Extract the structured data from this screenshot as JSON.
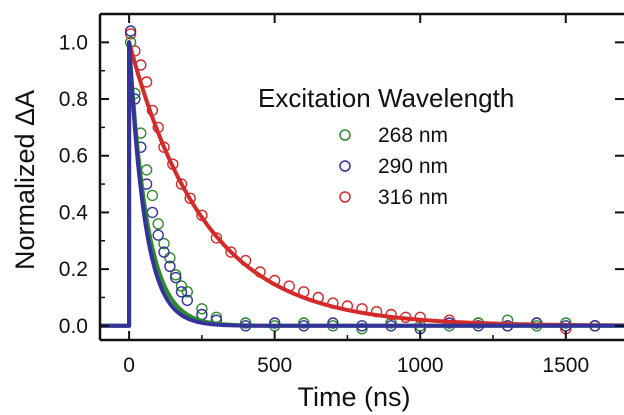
{
  "chart_data": {
    "type": "scatter",
    "xlabel": "Time (ns)",
    "ylabel": "Normalized ΔA",
    "xlim": [
      -100,
      1700
    ],
    "ylim": [
      -0.05,
      1.1
    ],
    "x_ticks": [
      "0",
      "500",
      "1000",
      "1500"
    ],
    "x_tick_values": [
      0,
      500,
      1000,
      1500
    ],
    "y_ticks": [
      "0.0",
      "0.2",
      "0.4",
      "0.6",
      "0.8",
      "1.0"
    ],
    "y_tick_values": [
      0,
      0.2,
      0.4,
      0.6,
      0.8,
      1.0
    ],
    "legend_title": "Excitation Wavelength",
    "legend_position": "top-right",
    "grid": false,
    "series": [
      {
        "name": "268 nm",
        "color": "#2f8a2f",
        "marker": "open-circle",
        "fit_tau_ns": 62,
        "points": [
          [
            5,
            1.0
          ],
          [
            20,
            0.82
          ],
          [
            40,
            0.68
          ],
          [
            60,
            0.55
          ],
          [
            80,
            0.46
          ],
          [
            100,
            0.36
          ],
          [
            120,
            0.29
          ],
          [
            140,
            0.24
          ],
          [
            160,
            0.18
          ],
          [
            180,
            0.14
          ],
          [
            200,
            0.12
          ],
          [
            250,
            0.06
          ],
          [
            300,
            0.03
          ],
          [
            400,
            0.01
          ],
          [
            500,
            0.0
          ],
          [
            600,
            0.01
          ],
          [
            700,
            0.0
          ],
          [
            800,
            -0.01
          ],
          [
            900,
            0.01
          ],
          [
            1000,
            0.0
          ],
          [
            1100,
            0.0
          ],
          [
            1200,
            0.01
          ],
          [
            1300,
            0.02
          ],
          [
            1400,
            0.0
          ],
          [
            1500,
            0.01
          ],
          [
            1600,
            0.0
          ]
        ]
      },
      {
        "name": "290 nm",
        "color": "#333399",
        "marker": "open-circle",
        "fit_tau_ns": 55,
        "points": [
          [
            5,
            1.04
          ],
          [
            20,
            0.8
          ],
          [
            40,
            0.63
          ],
          [
            60,
            0.5
          ],
          [
            80,
            0.4
          ],
          [
            100,
            0.32
          ],
          [
            120,
            0.26
          ],
          [
            140,
            0.21
          ],
          [
            160,
            0.17
          ],
          [
            180,
            0.12
          ],
          [
            200,
            0.09
          ],
          [
            250,
            0.04
          ],
          [
            300,
            0.02
          ],
          [
            400,
            0.0
          ],
          [
            500,
            0.01
          ],
          [
            600,
            0.0
          ],
          [
            700,
            0.01
          ],
          [
            800,
            0.0
          ],
          [
            900,
            0.0
          ],
          [
            1000,
            -0.01
          ],
          [
            1100,
            0.01
          ],
          [
            1200,
            0.0
          ],
          [
            1300,
            0.0
          ],
          [
            1400,
            0.01
          ],
          [
            1500,
            0.0
          ],
          [
            1600,
            0.0
          ]
        ]
      },
      {
        "name": "316 nm",
        "color": "#d42a2a",
        "marker": "open-circle",
        "fit_tau_ns": 260,
        "points": [
          [
            5,
            1.03
          ],
          [
            20,
            0.97
          ],
          [
            40,
            0.92
          ],
          [
            60,
            0.86
          ],
          [
            80,
            0.76
          ],
          [
            100,
            0.7
          ],
          [
            120,
            0.63
          ],
          [
            150,
            0.57
          ],
          [
            180,
            0.5
          ],
          [
            210,
            0.45
          ],
          [
            250,
            0.39
          ],
          [
            300,
            0.31
          ],
          [
            350,
            0.26
          ],
          [
            400,
            0.23
          ],
          [
            450,
            0.19
          ],
          [
            500,
            0.16
          ],
          [
            550,
            0.14
          ],
          [
            600,
            0.12
          ],
          [
            650,
            0.1
          ],
          [
            700,
            0.08
          ],
          [
            750,
            0.07
          ],
          [
            800,
            0.06
          ],
          [
            850,
            0.05
          ],
          [
            900,
            0.04
          ],
          [
            950,
            0.03
          ],
          [
            1000,
            0.03
          ],
          [
            1100,
            0.02
          ],
          [
            1200,
            0.01
          ],
          [
            1300,
            0.0
          ],
          [
            1400,
            0.01
          ],
          [
            1500,
            -0.01
          ],
          [
            1600,
            0.0
          ]
        ]
      }
    ]
  }
}
